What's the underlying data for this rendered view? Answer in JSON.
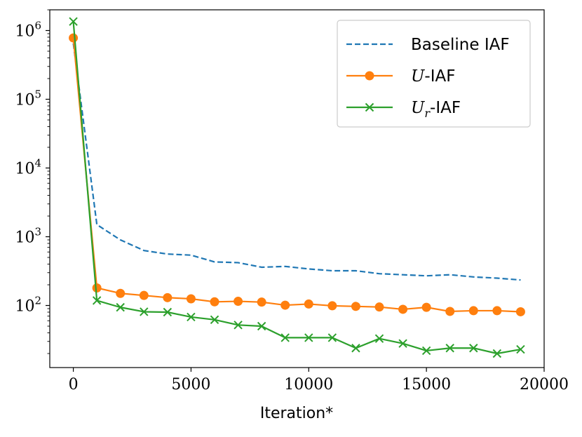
{
  "chart_data": {
    "type": "line",
    "title": "",
    "xlabel": "Iteration*",
    "ylabel": "",
    "xlim": [
      -1000,
      20000
    ],
    "ylim": [
      12.5,
      2000000
    ],
    "yscale": "log",
    "xticks": [
      0,
      5000,
      10000,
      15000,
      20000
    ],
    "xtick_labels": [
      "0",
      "5000",
      "10000",
      "15000",
      "20000"
    ],
    "yticks": [
      100,
      1000,
      10000,
      100000,
      1000000
    ],
    "ytick_labels": [
      {
        "base": "10",
        "exp": "2"
      },
      {
        "base": "10",
        "exp": "3"
      },
      {
        "base": "10",
        "exp": "4"
      },
      {
        "base": "10",
        "exp": "5"
      },
      {
        "base": "10",
        "exp": "6"
      }
    ],
    "legend_position": "top-right",
    "series": [
      {
        "name": "Baseline IAF",
        "legend_plain": "Baseline IAF",
        "legend_italic": "",
        "legend_sub": "",
        "legend_suffix": "",
        "color": "#1f77b4",
        "style": "dashed",
        "marker": "none",
        "x": [
          0,
          1000,
          2000,
          3000,
          4000,
          5000,
          6000,
          7000,
          8000,
          9000,
          10000,
          11000,
          12000,
          13000,
          14000,
          15000,
          16000,
          17000,
          18000,
          19000
        ],
        "values": [
          650000,
          1500,
          900,
          630,
          560,
          540,
          430,
          420,
          360,
          370,
          340,
          320,
          320,
          290,
          280,
          270,
          280,
          260,
          250,
          235
        ]
      },
      {
        "name": "U-IAF",
        "legend_plain": "",
        "legend_italic": "U",
        "legend_sub": "",
        "legend_suffix": "-IAF",
        "color": "#ff7f0e",
        "style": "solid",
        "marker": "circle",
        "x": [
          0,
          1000,
          2000,
          3000,
          4000,
          5000,
          6000,
          7000,
          8000,
          9000,
          10000,
          11000,
          12000,
          13000,
          14000,
          15000,
          16000,
          17000,
          18000,
          19000
        ],
        "values": [
          780000,
          180,
          150,
          140,
          130,
          125,
          113,
          115,
          112,
          101,
          105,
          99,
          97,
          95,
          88,
          94,
          82,
          84,
          84,
          81
        ]
      },
      {
        "name": "Ur-IAF",
        "legend_plain": "",
        "legend_italic": "U",
        "legend_sub": "r",
        "legend_suffix": "-IAF",
        "color": "#2ca02c",
        "style": "solid",
        "marker": "x",
        "x": [
          0,
          1000,
          2000,
          3000,
          4000,
          5000,
          6000,
          7000,
          8000,
          9000,
          10000,
          11000,
          12000,
          13000,
          14000,
          15000,
          16000,
          17000,
          18000,
          19000
        ],
        "values": [
          1350000,
          118,
          94,
          81,
          80,
          68,
          62,
          52,
          50,
          34,
          34,
          34,
          24,
          33,
          28,
          22,
          24,
          24,
          20,
          23
        ]
      }
    ]
  }
}
